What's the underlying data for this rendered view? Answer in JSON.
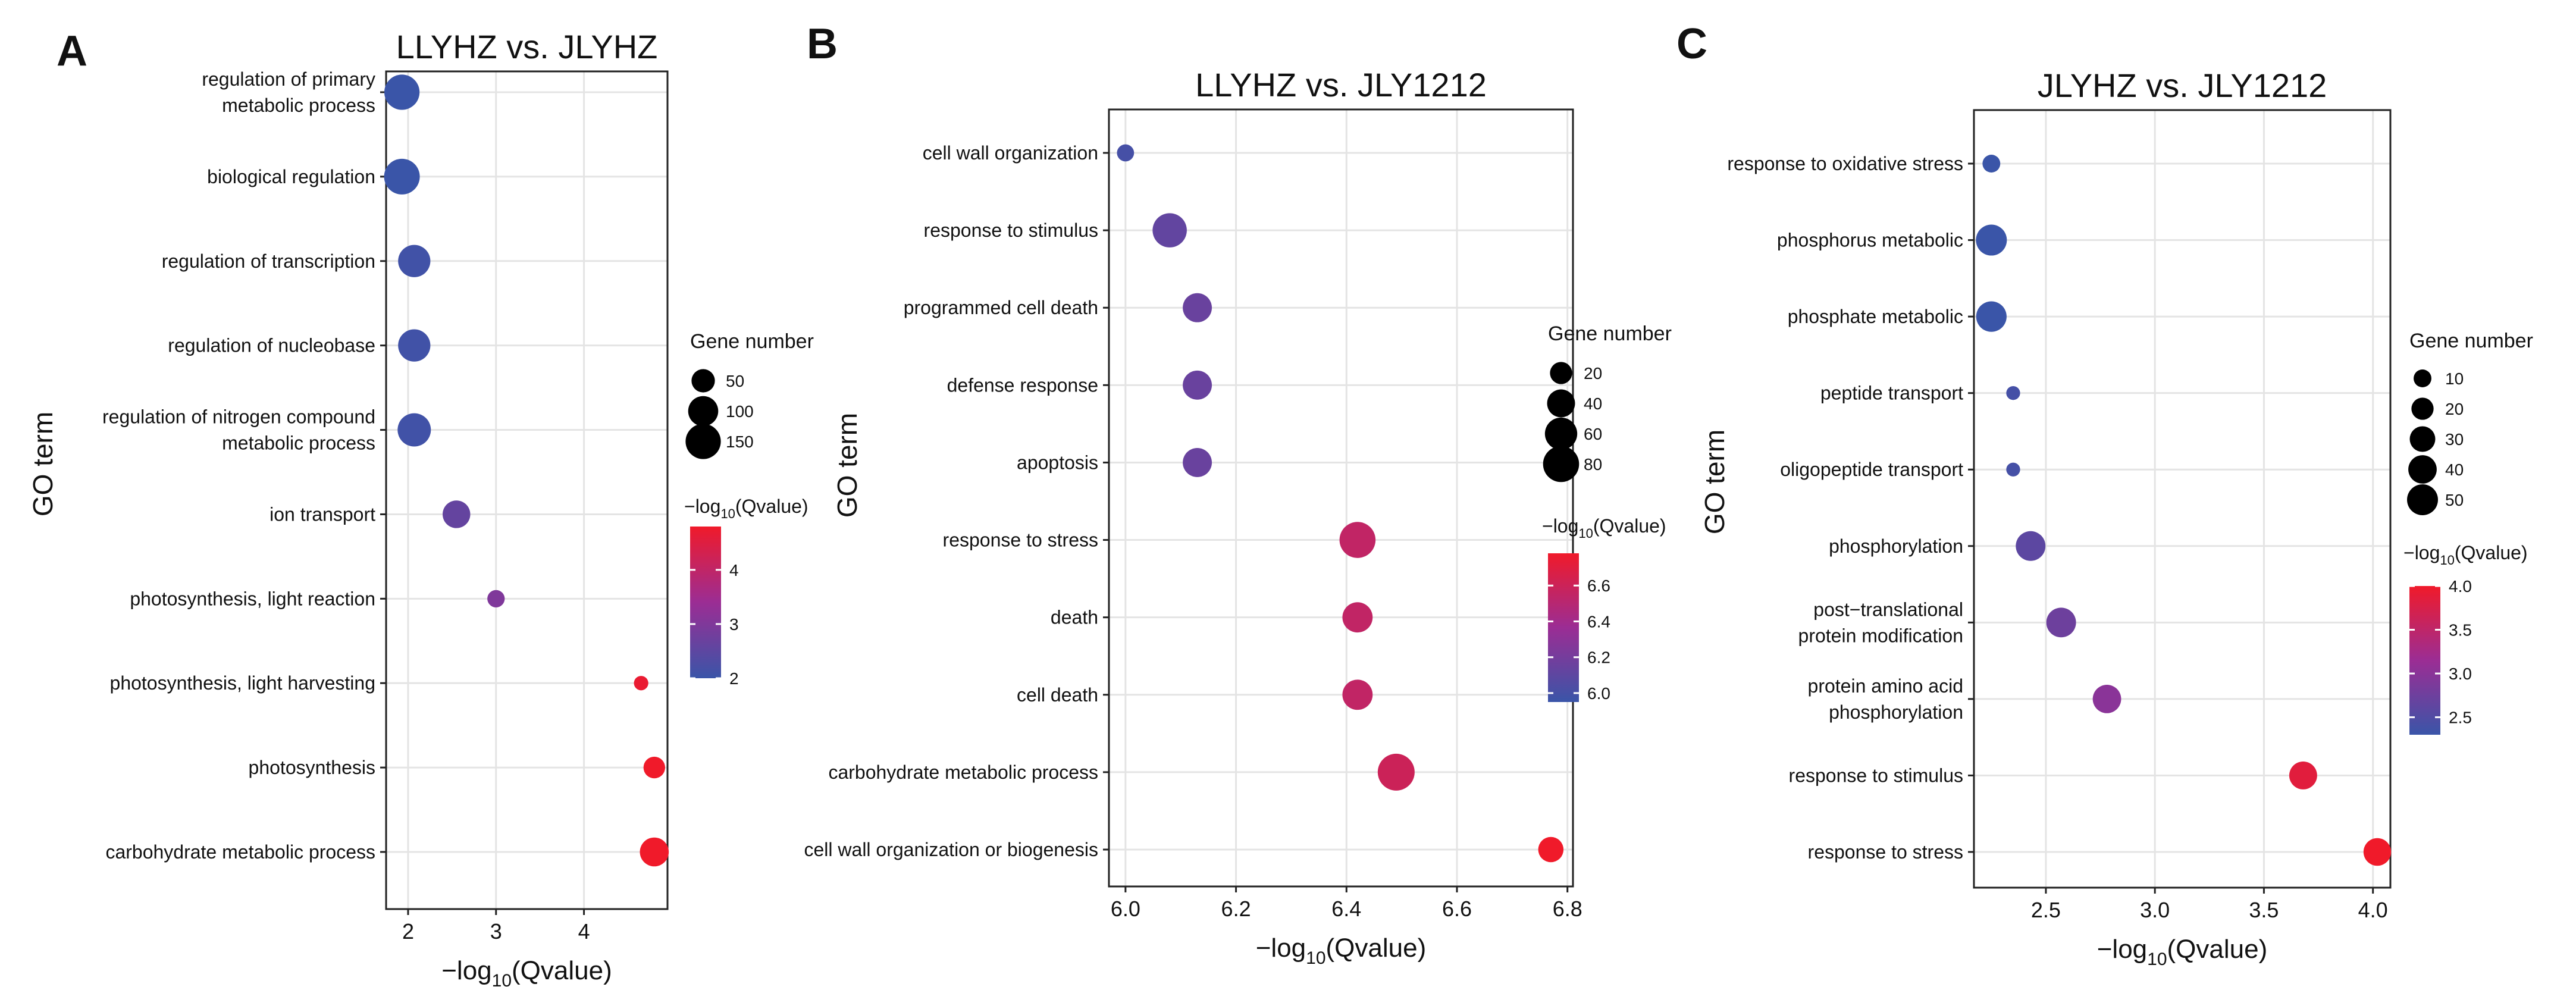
{
  "chart_data": [
    {
      "panel_letter": "A",
      "type": "scatter",
      "title": "LLYHZ vs. JLYHZ",
      "xlabel_main": "−log",
      "xlabel_sub": "10",
      "xlabel_tail": "(Qvalue)",
      "ylabel": "GO term",
      "xlim": [
        1.75,
        4.95
      ],
      "xticks": [
        2,
        3,
        4
      ],
      "tick_labels": [
        "2",
        "3",
        "4"
      ],
      "categories": [
        "regulation of primary\nmetabolic process",
        "biological regulation",
        "regulation of transcription",
        "regulation of nucleobase",
        "regulation of nitrogen compound\nmetabolic process",
        "ion transport",
        "photosynthesis, light reaction",
        "photosynthesis, light harvesting",
        "photosynthesis",
        "carbohydrate metabolic process"
      ],
      "x": [
        1.93,
        1.93,
        2.07,
        2.07,
        2.07,
        2.55,
        3.0,
        4.65,
        4.8,
        4.8
      ],
      "gene_number": [
        150,
        155,
        120,
        120,
        130,
        80,
        20,
        10,
        40,
        90
      ],
      "color_value": [
        2.0,
        2.0,
        2.1,
        2.1,
        2.1,
        2.6,
        3.0,
        4.7,
        4.8,
        4.8
      ],
      "size_legend": {
        "title": "Gene number",
        "values": [
          50,
          100,
          150
        ],
        "labels": [
          "50",
          "100",
          "150"
        ]
      },
      "color_legend": {
        "title_main": "−log",
        "title_sub": "10",
        "title_tail": "(Qvalue)",
        "range": [
          2,
          4.8
        ],
        "ticks": [
          2,
          3,
          4
        ],
        "tick_labels": [
          "2",
          "3",
          "4"
        ]
      }
    },
    {
      "panel_letter": "B",
      "type": "scatter",
      "title": "LLYHZ vs. JLY1212",
      "xlabel_main": "−log",
      "xlabel_sub": "10",
      "xlabel_tail": "(Qvalue)",
      "ylabel": "GO term",
      "xlim": [
        5.97,
        6.81
      ],
      "xticks": [
        6.0,
        6.2,
        6.4,
        6.6,
        6.8
      ],
      "tick_labels": [
        "6.0",
        "6.2",
        "6.4",
        "6.6",
        "6.8"
      ],
      "categories": [
        "cell wall organization",
        "response to stimulus",
        "programmed cell death",
        "defense response",
        "apoptosis",
        "response to stress",
        "death",
        "cell death",
        "carbohydrate metabolic process",
        "cell wall organization or biogenesis"
      ],
      "x": [
        6.0,
        6.08,
        6.13,
        6.13,
        6.13,
        6.42,
        6.42,
        6.42,
        6.49,
        6.77
      ],
      "gene_number": [
        8,
        70,
        45,
        45,
        45,
        80,
        50,
        50,
        85,
        30
      ],
      "color_value": [
        6.0,
        6.12,
        6.15,
        6.15,
        6.15,
        6.55,
        6.55,
        6.55,
        6.6,
        6.78
      ],
      "size_legend": {
        "title": "Gene number",
        "values": [
          20,
          40,
          60,
          80
        ],
        "labels": [
          "20",
          "40",
          "60",
          "80"
        ]
      },
      "color_legend": {
        "title_main": "−log",
        "title_sub": "10",
        "title_tail": "(Qvalue)",
        "range": [
          5.95,
          6.78
        ],
        "ticks": [
          6.0,
          6.2,
          6.4,
          6.6
        ],
        "tick_labels": [
          "6.0",
          "6.2",
          "6.4",
          "6.6"
        ]
      }
    },
    {
      "panel_letter": "C",
      "type": "scatter",
      "title": "JLYHZ vs. JLY1212",
      "xlabel_main": "−log",
      "xlabel_sub": "10",
      "xlabel_tail": "(Qvalue)",
      "ylabel": "GO term",
      "xlim": [
        2.17,
        4.08
      ],
      "xticks": [
        2.5,
        3.0,
        3.5,
        4.0
      ],
      "tick_labels": [
        "2.5",
        "3.0",
        "3.5",
        "4.0"
      ],
      "categories": [
        "response to oxidative stress",
        "phosphorus metabolic",
        "phosphate metabolic",
        "peptide transport",
        "oligopeptide transport",
        "phosphorylation",
        "post−translational\nprotein modification",
        "protein amino acid\nphosphorylation",
        "response to stimulus",
        "response to stress"
      ],
      "x": [
        2.25,
        2.25,
        2.25,
        2.35,
        2.35,
        2.43,
        2.57,
        2.78,
        3.68,
        4.02
      ],
      "gene_number": [
        10,
        50,
        48,
        4,
        4,
        45,
        45,
        40,
        38,
        37
      ],
      "color_value": [
        2.25,
        2.25,
        2.25,
        2.4,
        2.4,
        2.6,
        2.75,
        3.0,
        3.85,
        4.0
      ],
      "size_legend": {
        "title": "Gene number",
        "values": [
          10,
          20,
          30,
          40,
          50
        ],
        "labels": [
          "10",
          "20",
          "30",
          "40",
          "50"
        ]
      },
      "color_legend": {
        "title_main": "−log",
        "title_sub": "10",
        "title_tail": "(Qvalue)",
        "range": [
          2.3,
          4.0
        ],
        "ticks": [
          2.5,
          3.0,
          3.5,
          4.0
        ],
        "tick_labels": [
          "2.5",
          "3.0",
          "3.5",
          "4.0"
        ]
      }
    }
  ],
  "colors": {
    "low": "#3a55a8",
    "mid": "#9b2d94",
    "high": "#f01a2a",
    "grid": "#e4e4e4",
    "panel_border": "#222222",
    "text": "#111111"
  }
}
